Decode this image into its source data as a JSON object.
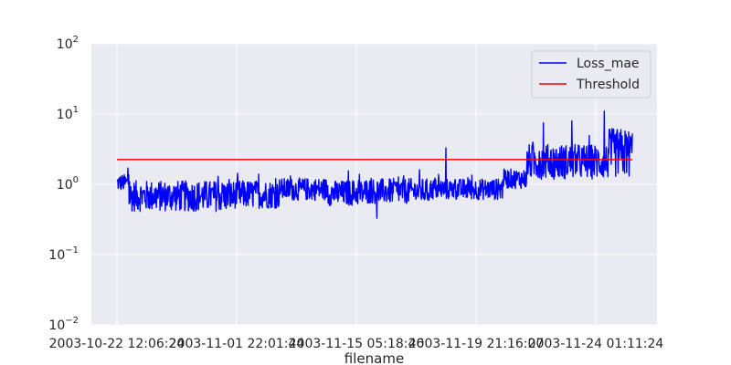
{
  "chart_data": {
    "type": "line",
    "title": "",
    "xlabel": "filename",
    "ylabel": "",
    "y_scale": "log",
    "ylim": [
      0.01,
      100
    ],
    "y_ticks": [
      {
        "value": 0.01,
        "base": "10",
        "exp": "−2"
      },
      {
        "value": 0.1,
        "base": "10",
        "exp": "−1"
      },
      {
        "value": 1,
        "base": "10",
        "exp": "0"
      },
      {
        "value": 10,
        "base": "10",
        "exp": "1"
      },
      {
        "value": 100,
        "base": "10",
        "exp": "2"
      }
    ],
    "x_tick_labels": [
      "2003-10-22 12:06:24",
      "2003-11-01 22:01:44",
      "2003-11-15 05:18:46",
      "2003-11-19 21:16:07",
      "2003-11-24 01:11:24"
    ],
    "grid": true,
    "legend_position": "top-right",
    "series": [
      {
        "name": "Loss_mae",
        "color": "#0000ff",
        "segments": [
          {
            "points": 30,
            "level": 1.05,
            "noise": 0.12
          },
          {
            "points": 260,
            "level": 0.68,
            "noise": 0.22
          },
          {
            "points": 110,
            "level": 0.72,
            "noise": 0.2
          },
          {
            "points": 120,
            "level": 0.85,
            "noise": 0.16
          },
          {
            "points": 90,
            "level": 0.75,
            "noise": 0.18
          },
          {
            "points": 160,
            "level": 0.8,
            "noise": 0.18
          },
          {
            "points": 180,
            "level": 0.85,
            "noise": 0.15
          },
          {
            "points": 60,
            "level": 1.2,
            "noise": 0.14
          },
          {
            "points": 200,
            "level": 2.1,
            "noise": 0.25
          },
          {
            "points": 60,
            "level": 2.8,
            "noise": 0.35
          }
        ],
        "spikes": [
          {
            "index": 27,
            "value": 1.7
          },
          {
            "index": 570,
            "value": 1.55
          },
          {
            "index": 640,
            "value": 0.33
          },
          {
            "index": 810,
            "value": 3.3
          },
          {
            "index": 1050,
            "value": 7.5
          },
          {
            "index": 1120,
            "value": 8.0
          },
          {
            "index": 1200,
            "value": 11.0
          }
        ]
      },
      {
        "name": "Threshold",
        "color": "#ff0000",
        "value": 2.25
      }
    ]
  }
}
